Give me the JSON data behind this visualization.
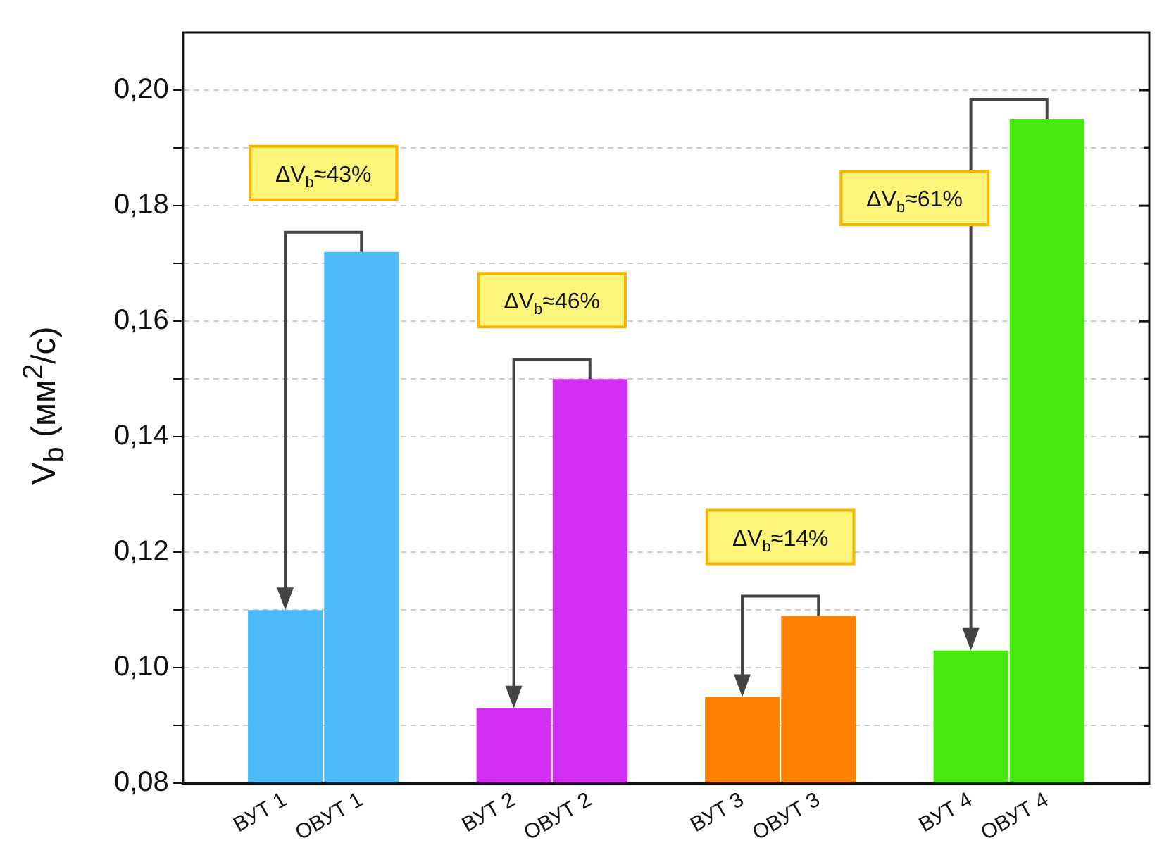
{
  "chart_data": {
    "type": "bar",
    "ylabel": "V$_{b}$ (мм$^{2}$/с)",
    "categories": [
      "ВУТ 1",
      "ОВУТ 1",
      "ВУТ 2",
      "ОВУТ 2",
      "ВУТ 3",
      "ОВУТ 3",
      "ВУТ 4",
      "ОВУТ 4"
    ],
    "values": [
      0.11,
      0.172,
      0.093,
      0.15,
      0.095,
      0.109,
      0.103,
      0.195
    ],
    "colors": [
      "#4dbaf9",
      "#4dbaf9",
      "#d42ff5",
      "#d42ff5",
      "#ff8200",
      "#ff8200",
      "#46e80f",
      "#46e80f"
    ],
    "ylim": [
      0.08,
      0.21
    ],
    "yticks": [
      {
        "value": 0.08,
        "label": "0,08"
      },
      {
        "value": 0.09,
        "label": null
      },
      {
        "value": 0.1,
        "label": "0,10"
      },
      {
        "value": 0.11,
        "label": null
      },
      {
        "value": 0.12,
        "label": "0,12"
      },
      {
        "value": 0.13,
        "label": null
      },
      {
        "value": 0.14,
        "label": "0,14"
      },
      {
        "value": 0.15,
        "label": null
      },
      {
        "value": 0.16,
        "label": "0,16"
      },
      {
        "value": 0.17,
        "label": null
      },
      {
        "value": 0.18,
        "label": "0,18"
      },
      {
        "value": 0.19,
        "label": null
      },
      {
        "value": 0.2,
        "label": "0,20"
      }
    ],
    "grid": "y",
    "annotations": [
      "ΔV$_{b}$≈43%",
      "ΔV$_{b}$≈46%",
      "ΔV$_{b}$≈14%",
      "ΔV$_{b}$≈61%"
    ]
  }
}
